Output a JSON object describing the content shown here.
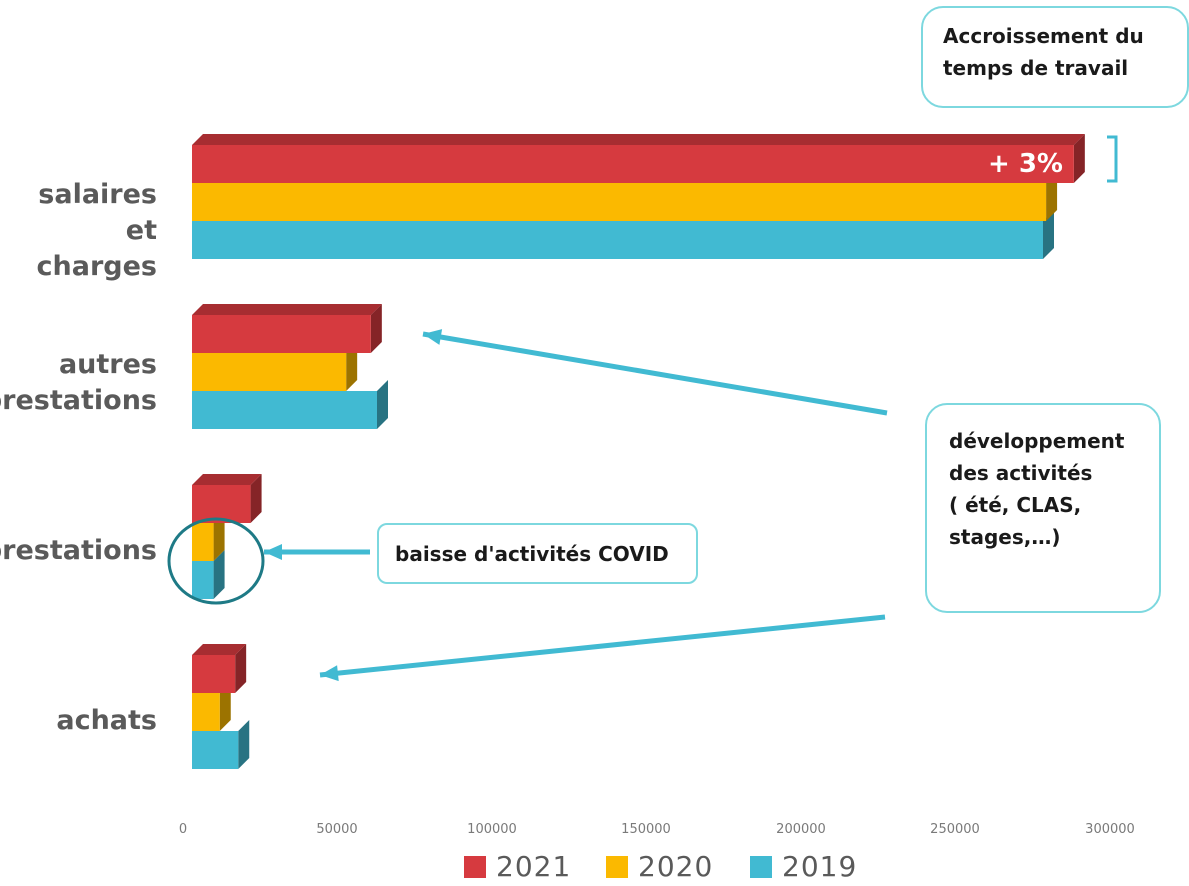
{
  "chart_data": {
    "type": "bar",
    "orientation": "horizontal",
    "categories": [
      "salaires et\ncharges",
      "autres\nprestations",
      "prestations",
      "achats"
    ],
    "series": [
      {
        "name": "2021",
        "color": "#d63a3f",
        "values": [
          286000,
          58000,
          19000,
          14000
        ]
      },
      {
        "name": "2020",
        "color": "#fbb900",
        "values": [
          277000,
          50000,
          7000,
          9000
        ]
      },
      {
        "name": "2019",
        "color": "#41bad2",
        "values": [
          276000,
          60000,
          7000,
          15000
        ]
      }
    ],
    "xlim": [
      0,
      300000
    ],
    "ticks": [
      "0",
      "50000",
      "100000",
      "150000",
      "200000",
      "250000",
      "300000"
    ],
    "legend_position": "bottom",
    "annotations": {
      "pct": "+ 3%",
      "callout_top": "Accroissement du\ntemps de travail",
      "callout_right": "développement\ndes activités\n ( été, CLAS,\nstages,…)",
      "callout_covid": "baisse d'activités COVID"
    }
  }
}
